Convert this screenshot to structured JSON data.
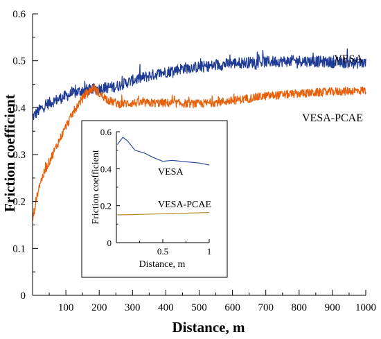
{
  "chart_data": [
    {
      "type": "line",
      "xlabel": "Distance, m",
      "ylabel": "Friction coefficient",
      "xlim": [
        0,
        1000
      ],
      "ylim": [
        0,
        0.6
      ],
      "xticks": [
        100,
        200,
        300,
        400,
        500,
        600,
        700,
        800,
        900,
        1000
      ],
      "xtick_labels": [
        "100",
        "200",
        "300",
        "400",
        "500",
        "600",
        "700",
        "800",
        "900",
        "1000"
      ],
      "yticks": [
        0,
        0.1,
        0.2,
        0.3,
        0.4,
        0.5,
        0.6
      ],
      "ytick_labels": [
        "0",
        "0.1",
        "0.2",
        "0.3",
        "0.4",
        "0.5",
        "0.6"
      ],
      "grid": false,
      "series": [
        {
          "name": "VESA",
          "color": "#1f3b96",
          "noise": 0.012,
          "x": [
            0,
            20,
            50,
            100,
            150,
            190,
            250,
            300,
            350,
            400,
            450,
            500,
            550,
            600,
            700,
            800,
            900,
            1000
          ],
          "y": [
            0.38,
            0.395,
            0.41,
            0.425,
            0.437,
            0.44,
            0.445,
            0.458,
            0.468,
            0.476,
            0.484,
            0.487,
            0.49,
            0.495,
            0.498,
            0.5,
            0.497,
            0.495
          ]
        },
        {
          "name": "VESA-PCAE",
          "color": "#e8600a",
          "noise": 0.009,
          "x": [
            0,
            10,
            20,
            40,
            60,
            80,
            100,
            130,
            160,
            185,
            200,
            230,
            260,
            300,
            400,
            500,
            600,
            700,
            800,
            900,
            1000
          ],
          "y": [
            0.16,
            0.2,
            0.235,
            0.27,
            0.3,
            0.33,
            0.36,
            0.4,
            0.43,
            0.443,
            0.43,
            0.415,
            0.408,
            0.41,
            0.41,
            0.408,
            0.415,
            0.425,
            0.43,
            0.434,
            0.437
          ]
        }
      ]
    },
    {
      "type": "line",
      "inset": true,
      "xlabel": "Distance, m",
      "ylabel": "Friction coefficient",
      "xlim": [
        0,
        1
      ],
      "ylim": [
        0,
        0.6
      ],
      "xticks": [
        0.5,
        1
      ],
      "xtick_labels": [
        "0.5",
        "1"
      ],
      "yticks": [
        0,
        0.2,
        0.4,
        0.6
      ],
      "ytick_labels": [
        "0",
        "0.2",
        "0.4",
        "0.6"
      ],
      "grid": false,
      "series": [
        {
          "name": "VESA",
          "color": "#2f4a9a",
          "x": [
            0.01,
            0.07,
            0.12,
            0.2,
            0.3,
            0.4,
            0.5,
            0.6,
            0.7,
            0.8,
            0.9,
            0.95,
            1.0
          ],
          "y": [
            0.53,
            0.57,
            0.55,
            0.5,
            0.485,
            0.46,
            0.44,
            0.445,
            0.44,
            0.435,
            0.43,
            0.425,
            0.42
          ]
        },
        {
          "name": "VESA-PCAE",
          "color": "#b8882a",
          "x": [
            0.01,
            0.2,
            0.4,
            0.6,
            0.8,
            1.0
          ],
          "y": [
            0.15,
            0.152,
            0.155,
            0.157,
            0.16,
            0.163
          ]
        }
      ]
    }
  ]
}
